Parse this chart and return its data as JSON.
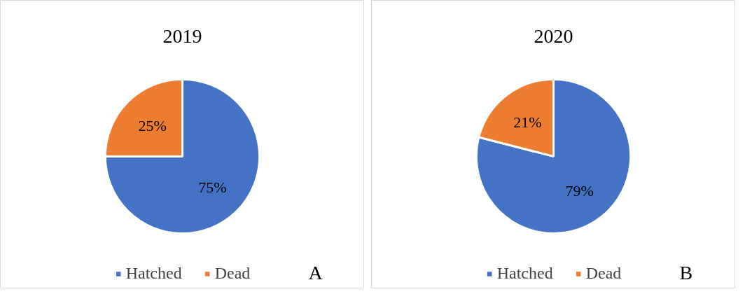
{
  "chart_data": [
    {
      "type": "pie",
      "title": "2019",
      "categories": [
        "Hatched",
        "Dead"
      ],
      "values": [
        75,
        25
      ],
      "colors": [
        "#4472c4",
        "#ed7d31"
      ],
      "value_labels": [
        "75%",
        "25%"
      ],
      "legend": "bottom",
      "annotations": [
        "A"
      ]
    },
    {
      "type": "pie",
      "title": "2020",
      "categories": [
        "Hatched",
        "Dead"
      ],
      "values": [
        79,
        21
      ],
      "colors": [
        "#4472c4",
        "#ed7d31"
      ],
      "value_labels": [
        "79%",
        "21%"
      ],
      "legend": "bottom",
      "annotations": [
        "B"
      ]
    }
  ]
}
